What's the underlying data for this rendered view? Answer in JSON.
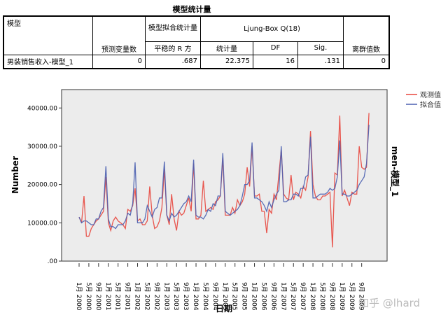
{
  "table": {
    "title": "模型统计量",
    "headers": {
      "model": "模型",
      "predictors": "预测变量数",
      "fit_group": "模型拟合统计量",
      "stationary_r2": "平稳的 R 方",
      "ljung_group": "Ljung-Box Q(18)",
      "statistic": "统计量",
      "df": "DF",
      "sig": "Sig.",
      "outliers": "离群值数"
    },
    "row": {
      "model": "男装销售收入-模型_1",
      "predictors": "0",
      "stationary_r2": ".687",
      "statistic": "22.375",
      "df": "16",
      "sig": ".131",
      "outliers": "0"
    }
  },
  "chart_data": {
    "type": "line",
    "ylabel": "Number",
    "xlabel": "日期",
    "right_title": "men-模型_1",
    "ylim": [
      0,
      44800
    ],
    "yticks": [
      ".00",
      "10000.00",
      "20000.00",
      "30000.00",
      "40000.00"
    ],
    "ytick_values": [
      0,
      10000,
      20000,
      30000,
      40000
    ],
    "xticks": [
      "1月 2000",
      "5月 2000",
      "9月 2000",
      "1月 2001",
      "5月 2001",
      "9月 2001",
      "1月 2002",
      "5月 2002",
      "9月 2002",
      "1月 2003",
      "5月 2003",
      "9月 2003",
      "1月 2004",
      "5月 2004",
      "9月 2004",
      "1月 2005",
      "5月 2005",
      "9月 2005",
      "1月 2006",
      "5月 2006",
      "9月 2006",
      "1月 2007",
      "5月 2007",
      "9月 2007",
      "1月 2008",
      "5月 2008",
      "9月 2008",
      "1月 2009",
      "5月 2009",
      "9月 2009"
    ],
    "x_start": "2000-01",
    "x_end": "2009-12",
    "legend_position": "top-right",
    "series": [
      {
        "name": "观测值",
        "color": "#e8453c",
        "values": [
          11500,
          10000,
          17000,
          6500,
          6500,
          8500,
          9500,
          10500,
          11000,
          12000,
          13000,
          22000,
          10000,
          8000,
          10500,
          11500,
          10500,
          10000,
          9500,
          8500,
          13500,
          13000,
          14500,
          19000,
          10500,
          11000,
          9500,
          9500,
          10500,
          19500,
          12000,
          8500,
          9000,
          10500,
          14000,
          24000,
          12000,
          9500,
          17500,
          11000,
          8000,
          13000,
          12000,
          12500,
          14500,
          16500,
          13000,
          25500,
          11000,
          11000,
          12000,
          21000,
          13000,
          13500,
          14000,
          13500,
          15500,
          16000,
          17000,
          27000,
          12000,
          12000,
          12000,
          14000,
          12500,
          16000,
          14500,
          15500,
          17500,
          24500,
          19500,
          30000,
          17000,
          17000,
          17500,
          13000,
          13000,
          7300,
          13500,
          12500,
          17500,
          16000,
          22700,
          29000,
          17500,
          16500,
          16000,
          22500,
          16000,
          18000,
          17500,
          16500,
          19500,
          18500,
          22000,
          34000,
          20000,
          17000,
          16000,
          16000,
          17000,
          17000,
          17500,
          18000,
          3600,
          23000,
          22500,
          38000,
          17000,
          18500,
          16500,
          14500,
          18000,
          17500,
          17500,
          30000,
          24500,
          24000,
          24500,
          38700
        ]
      },
      {
        "name": "拟合值",
        "color": "#4a5fb0",
        "values": [
          11500,
          10000,
          10500,
          10500,
          10000,
          9500,
          9500,
          11000,
          11000,
          13000,
          14000,
          24800,
          11000,
          9000,
          9000,
          8500,
          9500,
          9500,
          9500,
          10500,
          12500,
          12000,
          15000,
          25800,
          10000,
          10000,
          10000,
          11000,
          14500,
          13000,
          11500,
          13500,
          14000,
          16500,
          16500,
          26000,
          12000,
          10500,
          12500,
          11500,
          12000,
          13000,
          14000,
          15000,
          15500,
          17000,
          15500,
          26500,
          12000,
          11500,
          11500,
          11000,
          12000,
          13500,
          13000,
          15000,
          14500,
          17000,
          17000,
          28200,
          13000,
          12500,
          12000,
          12500,
          13000,
          13500,
          14500,
          17000,
          20000,
          20000,
          21000,
          31000,
          16500,
          16500,
          16000,
          15500,
          14500,
          13000,
          15500,
          14000,
          16000,
          17500,
          18500,
          30000,
          15500,
          15500,
          16000,
          16000,
          17500,
          17500,
          17000,
          19000,
          19000,
          22000,
          22500,
          32500,
          16500,
          16500,
          17000,
          17500,
          17500,
          17500,
          18000,
          19000,
          18500,
          19000,
          22000,
          31500,
          17500,
          17500,
          17000,
          17000,
          17500,
          18000,
          18500,
          20000,
          21000,
          22000,
          25500,
          35600
        ]
      }
    ]
  },
  "watermark": "知乎 @lhard"
}
